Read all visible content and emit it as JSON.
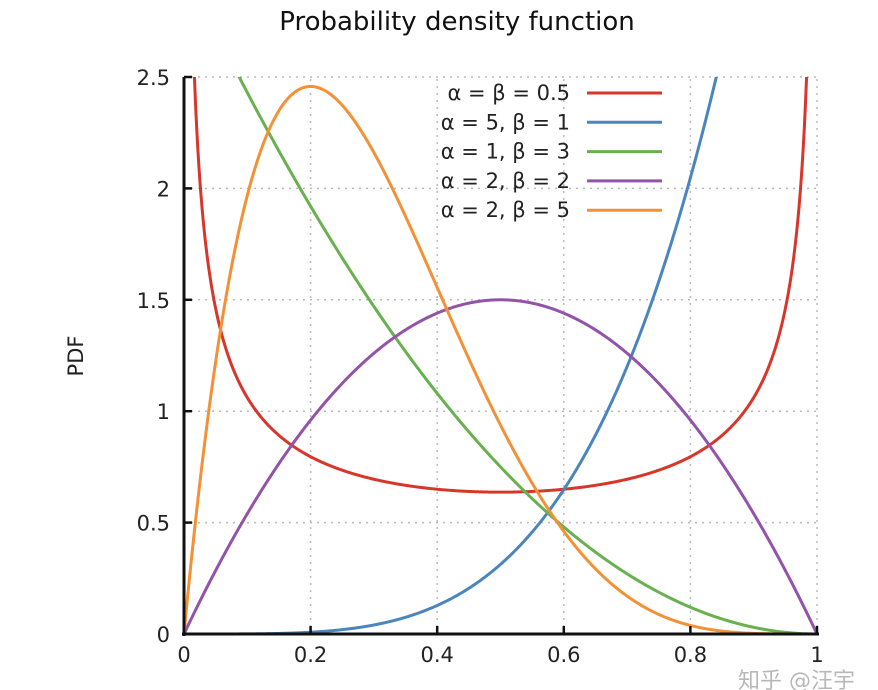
{
  "chart_data": {
    "type": "line",
    "title": "Probability density function",
    "xlabel": "",
    "ylabel": "PDF",
    "xlim": [
      0,
      1
    ],
    "ylim": [
      0,
      2.5
    ],
    "grid": true,
    "legend_position": "top-right",
    "xticks": [
      "0",
      "0.2",
      "0.4",
      "0.6",
      "0.8",
      "1"
    ],
    "yticks": [
      "0",
      "0.5",
      "1",
      "1.5",
      "2",
      "2.5"
    ],
    "xtick_values": [
      0,
      0.2,
      0.4,
      0.6,
      0.8,
      1
    ],
    "ytick_values": [
      0,
      0.5,
      1,
      1.5,
      2,
      2.5
    ],
    "function": "Beta distribution PDF",
    "series": [
      {
        "name": "α = β = 0.5",
        "alpha": 0.5,
        "beta": 0.5,
        "color": "#d7372b"
      },
      {
        "name": "α = 5, β = 1",
        "alpha": 5,
        "beta": 1,
        "color": "#4a86bd"
      },
      {
        "name": "α = 1, β = 3",
        "alpha": 1,
        "beta": 3,
        "color": "#69b04e"
      },
      {
        "name": "α = 2, β = 2",
        "alpha": 2,
        "beta": 2,
        "color": "#9353a8"
      },
      {
        "name": "α = 2, β = 5",
        "alpha": 2,
        "beta": 5,
        "color": "#f39136"
      }
    ]
  },
  "watermark": "知乎 @汪宇"
}
